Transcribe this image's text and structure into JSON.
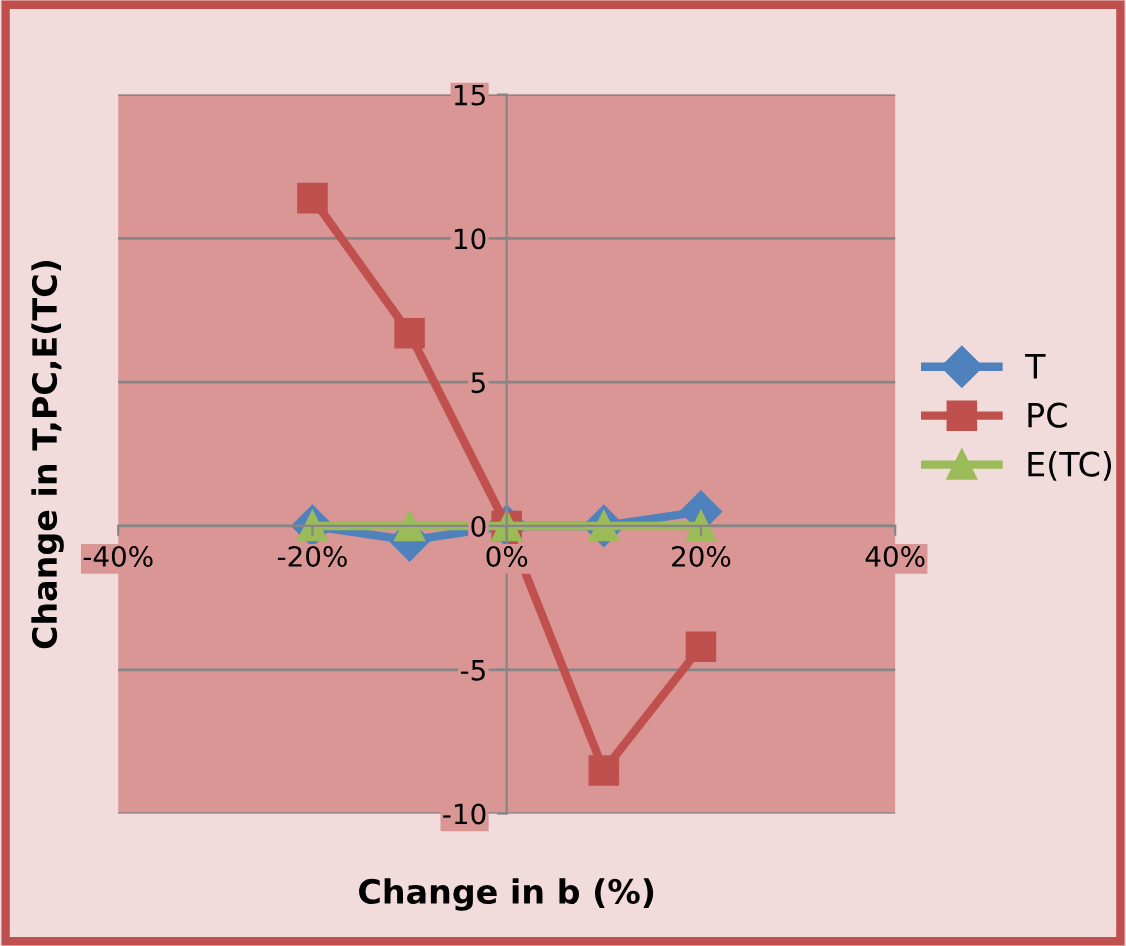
{
  "chart_data": {
    "type": "line",
    "xlabel": "Change in b (%)",
    "ylabel": "Change in T,PC,E(TC)",
    "x": [
      -20,
      -10,
      0,
      10,
      20
    ],
    "series": [
      {
        "name": "T",
        "color": "#4f81bd",
        "marker": "diamond",
        "values": [
          0,
          -0.5,
          0,
          0,
          0.5
        ]
      },
      {
        "name": "PC",
        "color": "#c0504d",
        "marker": "square",
        "values": [
          11.4,
          6.7,
          0,
          -8.5,
          -4.2
        ]
      },
      {
        "name": "E(TC)",
        "color": "#9bbb59",
        "marker": "triangle",
        "values": [
          0,
          0,
          0,
          0,
          0
        ]
      }
    ],
    "xlim": [
      -40,
      40
    ],
    "xticks": [
      {
        "value": -40,
        "label": "-40%"
      },
      {
        "value": -20,
        "label": "-20%"
      },
      {
        "value": 0,
        "label": "0%"
      },
      {
        "value": 20,
        "label": "20%"
      },
      {
        "value": 40,
        "label": "40%"
      }
    ],
    "ylim": [
      -10,
      15
    ],
    "yticks": [
      -10,
      -5,
      0,
      5,
      10,
      15
    ],
    "grid": "y",
    "legend": "right",
    "line_style": "solid"
  }
}
